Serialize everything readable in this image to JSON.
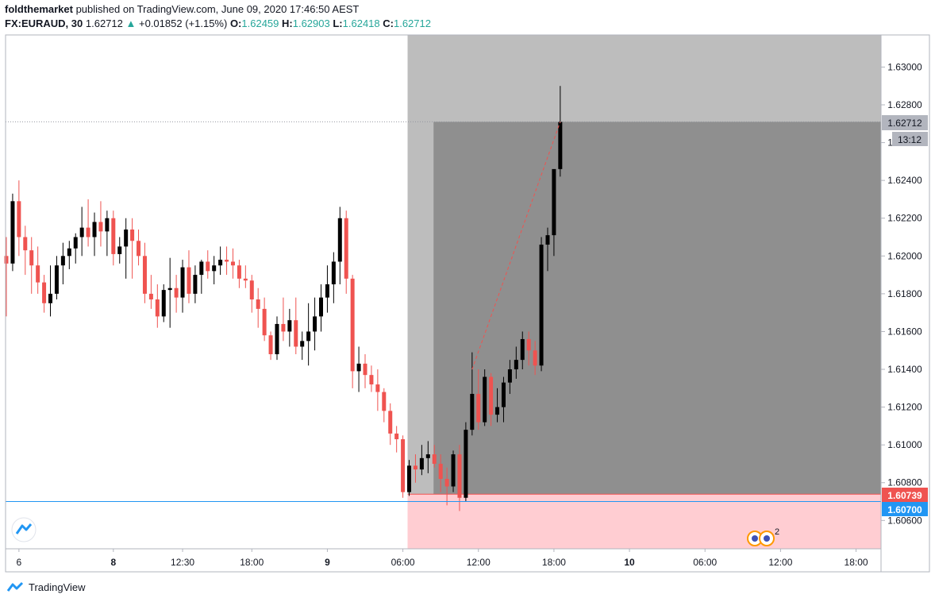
{
  "header": {
    "author": "foldthemarket",
    "published_text": " published on TradingView.com, June 09, 2020 17:46:50 AEST",
    "symbol": "FX:EURAUD, 30",
    "last": "1.62712",
    "change": "+0.01852 (+1.15%)",
    "o_label": "O:",
    "o_value": "1.62459",
    "h_label": "H:",
    "h_value": "1.62903",
    "l_label": "L:",
    "l_value": "1.62418",
    "c_label": "C:",
    "c_value": "1.62712"
  },
  "footer": {
    "brand": "TradingView"
  },
  "colors": {
    "bull": "#000000",
    "bear": "#ef5350",
    "target_zone": "#bdbdbd",
    "target_inner": "#8f8f8f",
    "stop_zone": "#ffcdd2",
    "support_line": "#2196f3",
    "price_tag": "#b2b5be",
    "entry_tag": "#ef5350",
    "support_tag": "#2196f3"
  },
  "price_tags": {
    "last_price": "1.62712",
    "countdown": "13:12",
    "entry_price": "1.60739",
    "support_price": "1.60700"
  },
  "event_badge": {
    "count": "2"
  },
  "chart_data": {
    "type": "candlestick",
    "y_ticks": [
      "1.63000",
      "1.62800",
      "1.62600",
      "1.62400",
      "1.62200",
      "1.62000",
      "1.61800",
      "1.61600",
      "1.61400",
      "1.61200",
      "1.61000",
      "1.60800",
      "1.60600"
    ],
    "y_tick_values": [
      1.63,
      1.628,
      1.626,
      1.624,
      1.622,
      1.62,
      1.618,
      1.616,
      1.614,
      1.612,
      1.61,
      1.608,
      1.606
    ],
    "y_range": [
      1.6045,
      1.6317
    ],
    "x_ticks": [
      {
        "label": "6",
        "bar": 2,
        "bold": false
      },
      {
        "label": "8",
        "bar": 17,
        "bold": true
      },
      {
        "label": "12:30",
        "bar": 28,
        "bold": false
      },
      {
        "label": "18:00",
        "bar": 39,
        "bold": false
      },
      {
        "label": "9",
        "bar": 51,
        "bold": true
      },
      {
        "label": "06:00",
        "bar": 63,
        "bold": false
      },
      {
        "label": "12:00",
        "bar": 75,
        "bold": false
      },
      {
        "label": "18:00",
        "bar": 87,
        "bold": false
      },
      {
        "label": "10",
        "bar": 99,
        "bold": true
      },
      {
        "label": "06:00",
        "bar": 111,
        "bold": false
      },
      {
        "label": "12:00",
        "bar": 123,
        "bold": false
      },
      {
        "label": "18:00",
        "bar": 135,
        "bold": false
      }
    ],
    "candles": [
      [
        1.62,
        1.621,
        1.6168,
        1.6196
      ],
      [
        1.6196,
        1.6233,
        1.6192,
        1.6229
      ],
      [
        1.6229,
        1.624,
        1.62,
        1.621
      ],
      [
        1.621,
        1.6216,
        1.619,
        1.6203
      ],
      [
        1.6203,
        1.621,
        1.618,
        1.6195
      ],
      [
        1.6195,
        1.6205,
        1.618,
        1.6186
      ],
      [
        1.6186,
        1.619,
        1.617,
        1.6175
      ],
      [
        1.6175,
        1.6195,
        1.6168,
        1.618
      ],
      [
        1.618,
        1.62,
        1.6177,
        1.6195
      ],
      [
        1.6195,
        1.6207,
        1.6185,
        1.62
      ],
      [
        1.62,
        1.6208,
        1.6193,
        1.6204
      ],
      [
        1.6204,
        1.6212,
        1.6196,
        1.621
      ],
      [
        1.621,
        1.6226,
        1.62,
        1.6215
      ],
      [
        1.6215,
        1.623,
        1.6205,
        1.621
      ],
      [
        1.621,
        1.6223,
        1.62,
        1.6218
      ],
      [
        1.6218,
        1.6229,
        1.6205,
        1.6213
      ],
      [
        1.6213,
        1.6224,
        1.62,
        1.622
      ],
      [
        1.622,
        1.6224,
        1.6195,
        1.6201
      ],
      [
        1.6201,
        1.621,
        1.6196,
        1.6205
      ],
      [
        1.6205,
        1.622,
        1.6188,
        1.6214
      ],
      [
        1.6214,
        1.622,
        1.6188,
        1.6208
      ],
      [
        1.6208,
        1.6214,
        1.6195,
        1.62
      ],
      [
        1.62,
        1.6207,
        1.6175,
        1.618
      ],
      [
        1.618,
        1.619,
        1.6172,
        1.6177
      ],
      [
        1.6177,
        1.6185,
        1.6162,
        1.6168
      ],
      [
        1.6168,
        1.6185,
        1.6165,
        1.6182
      ],
      [
        1.6182,
        1.6199,
        1.6162,
        1.6183
      ],
      [
        1.6183,
        1.619,
        1.617,
        1.6178
      ],
      [
        1.6178,
        1.6198,
        1.617,
        1.6194
      ],
      [
        1.6194,
        1.6203,
        1.6175,
        1.618
      ],
      [
        1.618,
        1.6195,
        1.6175,
        1.619
      ],
      [
        1.619,
        1.6198,
        1.618,
        1.6197
      ],
      [
        1.6197,
        1.6203,
        1.6188,
        1.6192
      ],
      [
        1.6192,
        1.62,
        1.6185,
        1.6195
      ],
      [
        1.6195,
        1.6205,
        1.619,
        1.6198
      ],
      [
        1.6198,
        1.6205,
        1.619,
        1.6197
      ],
      [
        1.6197,
        1.6204,
        1.6188,
        1.6195
      ],
      [
        1.6195,
        1.6198,
        1.6183,
        1.6188
      ],
      [
        1.6188,
        1.6195,
        1.6183,
        1.6187
      ],
      [
        1.6187,
        1.619,
        1.617,
        1.6177
      ],
      [
        1.6177,
        1.6183,
        1.6162,
        1.6172
      ],
      [
        1.6172,
        1.6178,
        1.6155,
        1.6158
      ],
      [
        1.6158,
        1.616,
        1.6145,
        1.6148
      ],
      [
        1.6148,
        1.6168,
        1.6145,
        1.6164
      ],
      [
        1.6164,
        1.6178,
        1.6155,
        1.616
      ],
      [
        1.616,
        1.6172,
        1.6152,
        1.6166
      ],
      [
        1.6166,
        1.6178,
        1.6148,
        1.6152
      ],
      [
        1.6152,
        1.616,
        1.6145,
        1.6155
      ],
      [
        1.6155,
        1.6175,
        1.6142,
        1.616
      ],
      [
        1.616,
        1.6178,
        1.615,
        1.6168
      ],
      [
        1.6168,
        1.6185,
        1.616,
        1.6178
      ],
      [
        1.6178,
        1.6195,
        1.617,
        1.6185
      ],
      [
        1.6185,
        1.6202,
        1.6175,
        1.6197
      ],
      [
        1.6197,
        1.6226,
        1.6185,
        1.622
      ],
      [
        1.622,
        1.6224,
        1.618,
        1.6188
      ],
      [
        1.6188,
        1.619,
        1.613,
        1.6139
      ],
      [
        1.6139,
        1.6152,
        1.6128,
        1.6143
      ],
      [
        1.6143,
        1.6148,
        1.613,
        1.6137
      ],
      [
        1.6137,
        1.6142,
        1.6128,
        1.6132
      ],
      [
        1.6132,
        1.614,
        1.6118,
        1.6128
      ],
      [
        1.6128,
        1.613,
        1.6112,
        1.6118
      ],
      [
        1.6118,
        1.6122,
        1.61,
        1.6106
      ],
      [
        1.6106,
        1.611,
        1.6096,
        1.6103
      ],
      [
        1.6103,
        1.6105,
        1.6072,
        1.6075
      ],
      [
        1.6075,
        1.6092,
        1.6073,
        1.6089
      ],
      [
        1.6089,
        1.6095,
        1.608,
        1.6087
      ],
      [
        1.6087,
        1.61,
        1.6084,
        1.6093
      ],
      [
        1.6093,
        1.6102,
        1.6085,
        1.6095
      ],
      [
        1.6095,
        1.61,
        1.6088,
        1.609
      ],
      [
        1.609,
        1.6095,
        1.6075,
        1.6082
      ],
      [
        1.6082,
        1.6088,
        1.6068,
        1.6078
      ],
      [
        1.6078,
        1.6097,
        1.6075,
        1.6095
      ],
      [
        1.6095,
        1.61,
        1.6065,
        1.6072
      ],
      [
        1.6072,
        1.6112,
        1.607,
        1.6108
      ],
      [
        1.6108,
        1.6149,
        1.6105,
        1.6127
      ],
      [
        1.6127,
        1.614,
        1.6108,
        1.6112
      ],
      [
        1.6112,
        1.614,
        1.611,
        1.6136
      ],
      [
        1.6136,
        1.6138,
        1.611,
        1.6116
      ],
      [
        1.6116,
        1.613,
        1.6112,
        1.612
      ],
      [
        1.612,
        1.6136,
        1.6112,
        1.6133
      ],
      [
        1.6133,
        1.6145,
        1.6127,
        1.614
      ],
      [
        1.614,
        1.6152,
        1.6135,
        1.6145
      ],
      [
        1.6145,
        1.616,
        1.614,
        1.6156
      ],
      [
        1.6156,
        1.616,
        1.6142,
        1.615
      ],
      [
        1.615,
        1.6155,
        1.6137,
        1.6142
      ],
      [
        1.6142,
        1.621,
        1.6139,
        1.6206
      ],
      [
        1.6206,
        1.6215,
        1.6192,
        1.6211
      ],
      [
        1.6211,
        1.6245,
        1.62,
        1.6246
      ],
      [
        1.6246,
        1.629,
        1.6242,
        1.6271
      ]
    ]
  }
}
